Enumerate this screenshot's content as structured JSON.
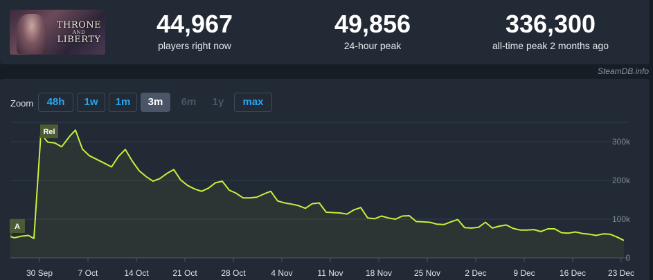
{
  "game": {
    "logo_line1": "THRONE",
    "logo_line2": "AND",
    "logo_line3": "LIBERTY"
  },
  "stats": [
    {
      "value": "44,967",
      "label": "players right now"
    },
    {
      "value": "49,856",
      "label": "24-hour peak"
    },
    {
      "value": "336,300",
      "label": "all-time peak 2 months ago"
    }
  ],
  "credit": "SteamDB.info",
  "zoom": {
    "label": "Zoom",
    "options": [
      {
        "label": "48h",
        "state": "enabled"
      },
      {
        "label": "1w",
        "state": "enabled"
      },
      {
        "label": "1m",
        "state": "enabled"
      },
      {
        "label": "3m",
        "state": "active"
      },
      {
        "label": "6m",
        "state": "disabled"
      },
      {
        "label": "1y",
        "state": "disabled"
      },
      {
        "label": "max",
        "state": "enabled"
      }
    ]
  },
  "colors": {
    "background": "#171d25",
    "panel": "#222a35",
    "line": "#c6f13b",
    "accent": "#2aa4ef",
    "grid": "#323c4a",
    "flag_bg": "#4c5a35"
  },
  "chart_data": {
    "type": "line",
    "series": [
      {
        "values": [
          [
            0,
            55000
          ],
          [
            3,
            52000
          ],
          [
            8,
            56000
          ],
          [
            13,
            58000
          ],
          [
            17,
            50000
          ],
          [
            22,
            320000
          ],
          [
            27,
            299000
          ],
          [
            32,
            297000
          ],
          [
            37,
            287000
          ],
          [
            43,
            315000
          ],
          [
            47,
            330000
          ],
          [
            52,
            281000
          ],
          [
            57,
            264000
          ],
          [
            62,
            255000
          ],
          [
            67,
            246000
          ],
          [
            73,
            235000
          ],
          [
            78,
            262000
          ],
          [
            83,
            280000
          ],
          [
            88,
            250000
          ],
          [
            93,
            225000
          ],
          [
            98,
            210000
          ],
          [
            103,
            198000
          ],
          [
            108,
            205000
          ],
          [
            113,
            218000
          ],
          [
            118,
            228000
          ],
          [
            123,
            201000
          ],
          [
            128,
            187000
          ],
          [
            133,
            178000
          ],
          [
            138,
            172000
          ],
          [
            143,
            180000
          ],
          [
            148,
            194000
          ],
          [
            153,
            198000
          ],
          [
            158,
            175000
          ],
          [
            163,
            167000
          ],
          [
            168,
            155000
          ],
          [
            173,
            155000
          ],
          [
            178,
            157000
          ],
          [
            183,
            165000
          ],
          [
            188,
            172000
          ],
          [
            193,
            147000
          ],
          [
            198,
            142000
          ],
          [
            203,
            139000
          ],
          [
            208,
            135000
          ],
          [
            213,
            128000
          ],
          [
            218,
            140000
          ],
          [
            223,
            142000
          ],
          [
            228,
            118000
          ],
          [
            233,
            117000
          ],
          [
            238,
            116000
          ],
          [
            243,
            113000
          ],
          [
            248,
            124000
          ],
          [
            253,
            130000
          ],
          [
            258,
            103000
          ],
          [
            263,
            101000
          ],
          [
            268,
            108000
          ],
          [
            273,
            103000
          ],
          [
            278,
            100000
          ],
          [
            283,
            108000
          ],
          [
            288,
            109000
          ],
          [
            293,
            94000
          ],
          [
            298,
            93000
          ],
          [
            303,
            92000
          ],
          [
            308,
            87000
          ],
          [
            313,
            86000
          ],
          [
            318,
            93000
          ],
          [
            323,
            99000
          ],
          [
            328,
            78000
          ],
          [
            333,
            77000
          ],
          [
            338,
            79000
          ],
          [
            343,
            92000
          ],
          [
            348,
            77000
          ],
          [
            353,
            82000
          ],
          [
            358,
            85000
          ],
          [
            363,
            76000
          ],
          [
            368,
            72000
          ],
          [
            373,
            72000
          ],
          [
            378,
            73000
          ],
          [
            383,
            68000
          ],
          [
            388,
            75000
          ],
          [
            393,
            75000
          ],
          [
            398,
            65000
          ],
          [
            403,
            64000
          ],
          [
            408,
            67000
          ],
          [
            413,
            63000
          ],
          [
            418,
            61000
          ],
          [
            423,
            58000
          ],
          [
            428,
            62000
          ],
          [
            433,
            61000
          ],
          [
            438,
            54000
          ],
          [
            443,
            45000
          ]
        ]
      }
    ],
    "x_unit": "hours-index (3-month window)",
    "xlim": [
      0,
      447
    ],
    "ylim": [
      0,
      350000
    ],
    "y_ticks": [
      {
        "value": 0,
        "label": "0"
      },
      {
        "value": 100000,
        "label": "100k"
      },
      {
        "value": 200000,
        "label": "200k"
      },
      {
        "value": 300000,
        "label": "300k"
      }
    ],
    "x_ticks": [
      {
        "x": 21,
        "label": "30 Sep"
      },
      {
        "x": 56,
        "label": "7 Oct"
      },
      {
        "x": 91,
        "label": "14 Oct"
      },
      {
        "x": 126,
        "label": "21 Oct"
      },
      {
        "x": 161,
        "label": "28 Oct"
      },
      {
        "x": 196,
        "label": "4 Nov"
      },
      {
        "x": 231,
        "label": "11 Nov"
      },
      {
        "x": 266,
        "label": "18 Nov"
      },
      {
        "x": 301,
        "label": "25 Nov"
      },
      {
        "x": 336,
        "label": "2 Dec"
      },
      {
        "x": 371,
        "label": "9 Dec"
      },
      {
        "x": 406,
        "label": "16 Dec"
      },
      {
        "x": 441,
        "label": "23 Dec"
      }
    ],
    "flags": [
      {
        "label": "A",
        "x": 0,
        "y": 55000
      },
      {
        "label": "Rel",
        "x": 22,
        "y": 320000
      }
    ],
    "grid": true,
    "legend": "none"
  }
}
